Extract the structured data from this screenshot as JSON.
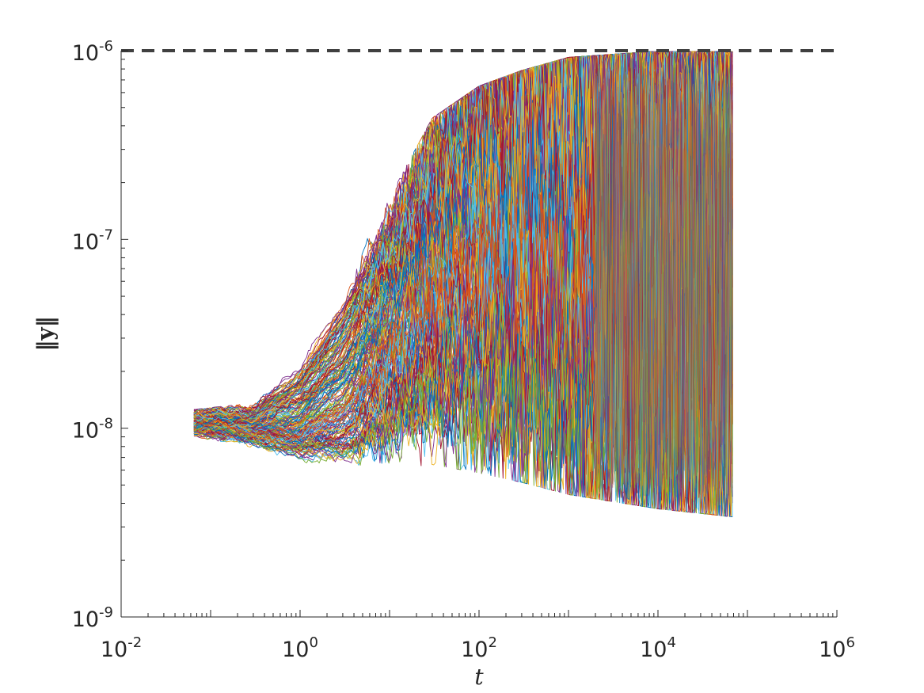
{
  "chart_data": {
    "type": "line",
    "title": "",
    "xlabel": "t",
    "ylabel": "‖y‖",
    "x_scale": "log",
    "y_scale": "log",
    "xlim": [
      0.01,
      1000000
    ],
    "ylim": [
      1e-09,
      1e-06
    ],
    "grid": false,
    "legend": "none",
    "x_ticks": [
      {
        "base": "10",
        "exp": "-2",
        "value": 0.01
      },
      {
        "base": "10",
        "exp": "0",
        "value": 1
      },
      {
        "base": "10",
        "exp": "2",
        "value": 100
      },
      {
        "base": "10",
        "exp": "4",
        "value": 10000
      },
      {
        "base": "10",
        "exp": "6",
        "value": 1000000
      }
    ],
    "y_ticks": [
      {
        "base": "10",
        "exp": "-9",
        "value": 1e-09
      },
      {
        "base": "10",
        "exp": "-8",
        "value": 1e-08
      },
      {
        "base": "10",
        "exp": "-7",
        "value": 1e-07
      },
      {
        "base": "10",
        "exp": "-6",
        "value": 1e-06
      }
    ],
    "reference_line": {
      "y": 1e-06,
      "style": "dashed",
      "color": "#404040",
      "x_range": [
        0.01,
        1000000
      ]
    },
    "series_envelope": {
      "t_range": [
        0.065,
        70000
      ],
      "count": 200,
      "initial_value": 1.05e-08,
      "description_points": {
        "t": [
          0.065,
          0.3,
          1,
          3,
          10,
          30,
          100,
          300,
          1000,
          10000,
          70000
        ],
        "upper": [
          1.2e-08,
          1.3e-08,
          2.2e-08,
          5.5e-08,
          1.6e-07,
          4.2e-07,
          6.2e-07,
          7.5e-07,
          8.8e-07,
          9.5e-07,
          9.5e-07
        ],
        "median": [
          1.05e-08,
          1.02e-08,
          1.05e-08,
          1.6e-08,
          4e-08,
          1.1e-07,
          2.3e-07,
          2.6e-07,
          2.2e-07,
          1.8e-07,
          1.6e-07
        ],
        "lower": [
          9.7e-09,
          8.5e-09,
          6.8e-09,
          6e-09,
          6.8e-09,
          7.2e-09,
          6.5e-09,
          5.8e-09,
          5e-09,
          4.2e-09,
          3.8e-09
        ]
      }
    },
    "colors": [
      "#0072BD",
      "#D95319",
      "#EDB120",
      "#7E2F8E",
      "#77AC30",
      "#4DBEEE",
      "#A2142F"
    ],
    "dominant_fill_color": "#D95319"
  }
}
